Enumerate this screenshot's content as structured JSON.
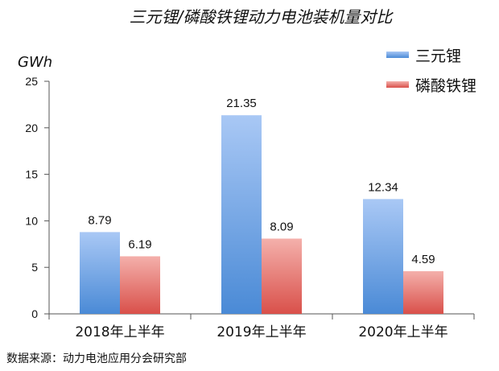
{
  "chart_data": {
    "type": "bar",
    "title": "三元锂/磷酸铁锂动力电池装机量对比",
    "ylabel": "GWh",
    "xlabel": "",
    "ylim": [
      0,
      25
    ],
    "yticks": [
      0,
      5,
      10,
      15,
      20,
      25
    ],
    "grid": false,
    "legend_position": "top-right",
    "categories": [
      "2018年上半年",
      "2019年上半年",
      "2020年上半年"
    ],
    "series": [
      {
        "name": "三元锂",
        "values": [
          8.79,
          21.35,
          12.34
        ],
        "color_top": "#a9c8f5",
        "color_bottom": "#4a8ad6"
      },
      {
        "name": "磷酸铁锂",
        "values": [
          6.19,
          8.09,
          4.59
        ],
        "color_top": "#f4b0ab",
        "color_bottom": "#d9504a"
      }
    ],
    "value_labels": [
      [
        "8.79",
        "21.35",
        "12.34"
      ],
      [
        "6.19",
        "8.09",
        "4.59"
      ]
    ],
    "source": "数据来源：动力电池应用分会研究部"
  }
}
